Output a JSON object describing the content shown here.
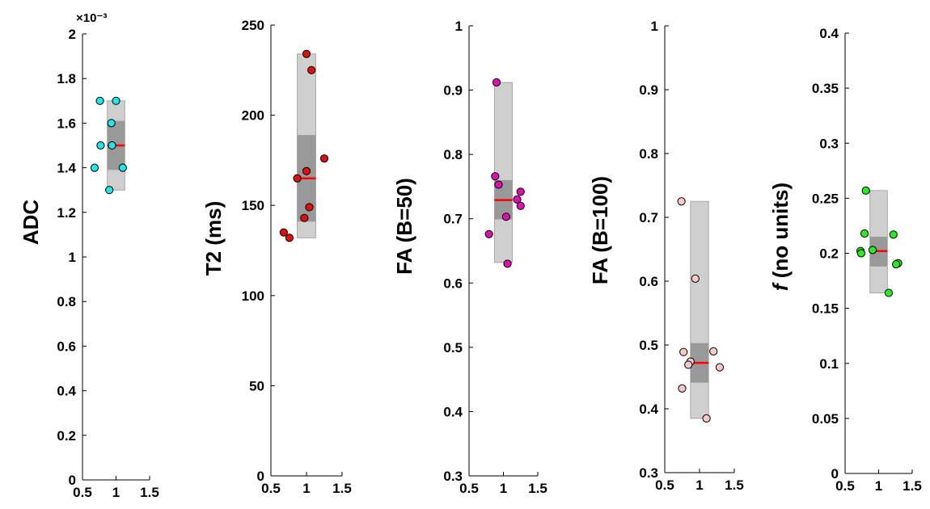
{
  "chart_data": [
    {
      "type": "scatter",
      "ylabel": "ADC",
      "ylabel_italic_prefix": "",
      "exponent_label": "×10⁻³",
      "ylim": [
        0,
        2
      ],
      "yticks": [
        0,
        0.2,
        0.4,
        0.6,
        0.8,
        1,
        1.2,
        1.4,
        1.6,
        1.8,
        2
      ],
      "ytick_labels": [
        "0",
        "0.2",
        "0.4",
        "0.6",
        "0.8",
        "1",
        "1.2",
        "1.4",
        "1.6",
        "1.8",
        "2"
      ],
      "xlim": [
        0.5,
        1.5
      ],
      "xticks": [
        0.5,
        1,
        1.5
      ],
      "xtick_labels": [
        "0.5",
        "1",
        "1.5"
      ],
      "marker_color": "#22e5e5",
      "box": {
        "min": 1.3,
        "max": 1.7,
        "q1": 1.39,
        "q3": 1.61,
        "median": 1.5,
        "x_left": 0.87,
        "x_right": 1.13
      },
      "points": [
        {
          "x": 0.76,
          "y": 1.7
        },
        {
          "x": 1.0,
          "y": 1.7
        },
        {
          "x": 0.93,
          "y": 1.6
        },
        {
          "x": 0.77,
          "y": 1.5
        },
        {
          "x": 0.94,
          "y": 1.5
        },
        {
          "x": 0.68,
          "y": 1.4
        },
        {
          "x": 1.1,
          "y": 1.4
        },
        {
          "x": 0.9,
          "y": 1.3
        }
      ]
    },
    {
      "type": "scatter",
      "ylabel": "T2 (ms)",
      "ylabel_italic_prefix": "",
      "exponent_label": "",
      "ylim": [
        0,
        250
      ],
      "yticks": [
        0,
        50,
        100,
        150,
        200,
        250
      ],
      "ytick_labels": [
        "0",
        "50",
        "100",
        "150",
        "200",
        "250"
      ],
      "xlim": [
        0.5,
        1.5
      ],
      "xticks": [
        0.5,
        1,
        1.5
      ],
      "xtick_labels": [
        "0.5",
        "1",
        "1.5"
      ],
      "marker_color": "#e01010",
      "box": {
        "min": 132,
        "max": 234,
        "q1": 141,
        "q3": 189,
        "median": 165,
        "x_left": 0.87,
        "x_right": 1.13
      },
      "points": [
        {
          "x": 1.0,
          "y": 234
        },
        {
          "x": 1.07,
          "y": 225
        },
        {
          "x": 1.25,
          "y": 176
        },
        {
          "x": 1.0,
          "y": 169
        },
        {
          "x": 0.87,
          "y": 165
        },
        {
          "x": 1.04,
          "y": 149
        },
        {
          "x": 0.97,
          "y": 143
        },
        {
          "x": 0.68,
          "y": 135
        },
        {
          "x": 0.76,
          "y": 132
        }
      ]
    },
    {
      "type": "scatter",
      "ylabel": "FA (B=50)",
      "ylabel_italic_prefix": "",
      "exponent_label": "",
      "ylim": [
        0.3,
        1
      ],
      "yticks": [
        0.3,
        0.4,
        0.5,
        0.6,
        0.7,
        0.8,
        0.9,
        1
      ],
      "ytick_labels": [
        "0.3",
        "0.4",
        "0.5",
        "0.6",
        "0.7",
        "0.8",
        "0.9",
        "1"
      ],
      "xlim": [
        0.5,
        1.5
      ],
      "xticks": [
        0.5,
        1,
        1.5
      ],
      "xtick_labels": [
        "0.5",
        "1",
        "1.5"
      ],
      "marker_color": "#e010b0",
      "box": {
        "min": 0.632,
        "max": 0.912,
        "q1": 0.699,
        "q3": 0.76,
        "median": 0.729,
        "x_left": 0.87,
        "x_right": 1.13
      },
      "points": [
        {
          "x": 0.9,
          "y": 0.912
        },
        {
          "x": 0.88,
          "y": 0.766
        },
        {
          "x": 0.93,
          "y": 0.753
        },
        {
          "x": 1.25,
          "y": 0.742
        },
        {
          "x": 1.2,
          "y": 0.73
        },
        {
          "x": 1.25,
          "y": 0.72
        },
        {
          "x": 1.04,
          "y": 0.703
        },
        {
          "x": 0.79,
          "y": 0.676
        },
        {
          "x": 1.06,
          "y": 0.63
        }
      ]
    },
    {
      "type": "scatter",
      "ylabel": "FA (B=100)",
      "ylabel_italic_prefix": "",
      "exponent_label": "",
      "ylim": [
        0.3,
        1
      ],
      "yticks": [
        0.3,
        0.4,
        0.5,
        0.6,
        0.7,
        0.8,
        0.9,
        1
      ],
      "ytick_labels": [
        "0.3",
        "0.4",
        "0.5",
        "0.6",
        "0.7",
        "0.8",
        "0.9",
        "1"
      ],
      "xlim": [
        0.5,
        1.5
      ],
      "xticks": [
        0.5,
        1,
        1.5
      ],
      "xtick_labels": [
        "0.5",
        "1",
        "1.5"
      ],
      "marker_color": "#f8c8c8",
      "box": {
        "min": 0.385,
        "max": 0.725,
        "q1": 0.441,
        "q3": 0.503,
        "median": 0.472,
        "x_left": 0.87,
        "x_right": 1.13
      },
      "points": [
        {
          "x": 0.74,
          "y": 0.725
        },
        {
          "x": 0.94,
          "y": 0.604
        },
        {
          "x": 0.77,
          "y": 0.489
        },
        {
          "x": 1.2,
          "y": 0.49
        },
        {
          "x": 0.87,
          "y": 0.474
        },
        {
          "x": 0.84,
          "y": 0.469
        },
        {
          "x": 1.29,
          "y": 0.465
        },
        {
          "x": 0.75,
          "y": 0.432
        },
        {
          "x": 1.1,
          "y": 0.385
        }
      ]
    },
    {
      "type": "scatter",
      "ylabel": " (no units)",
      "ylabel_italic_prefix": "f",
      "exponent_label": "",
      "ylim": [
        0,
        0.4
      ],
      "yticks": [
        0,
        0.05,
        0.1,
        0.15,
        0.2,
        0.25,
        0.3,
        0.35,
        0.4
      ],
      "ytick_labels": [
        "0",
        "0.05",
        "0.1",
        "0.15",
        "0.2",
        "0.25",
        "0.3",
        "0.35",
        "0.4"
      ],
      "xlim": [
        0.5,
        1.5
      ],
      "xticks": [
        0.5,
        1,
        1.5
      ],
      "xtick_labels": [
        "0.5",
        "1",
        "1.5"
      ],
      "marker_color": "#22ee22",
      "box": {
        "min": 0.164,
        "max": 0.257,
        "q1": 0.188,
        "q3": 0.215,
        "median": 0.202,
        "x_left": 0.87,
        "x_right": 1.13
      },
      "points": [
        {
          "x": 0.81,
          "y": 0.257
        },
        {
          "x": 0.79,
          "y": 0.218
        },
        {
          "x": 1.22,
          "y": 0.217
        },
        {
          "x": 0.91,
          "y": 0.203
        },
        {
          "x": 0.73,
          "y": 0.202
        },
        {
          "x": 0.74,
          "y": 0.2
        },
        {
          "x": 1.29,
          "y": 0.191
        },
        {
          "x": 1.26,
          "y": 0.19
        },
        {
          "x": 1.15,
          "y": 0.164
        }
      ]
    }
  ]
}
